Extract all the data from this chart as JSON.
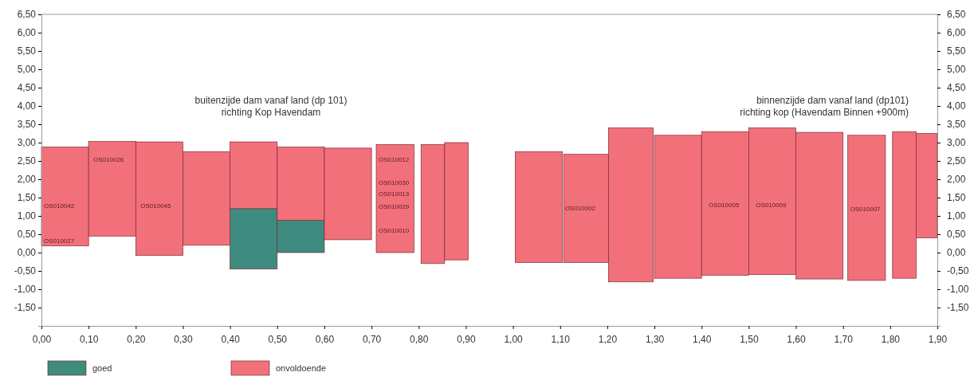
{
  "chart_data": {
    "type": "bar",
    "x": [
      0.05,
      0.15,
      0.25,
      0.35,
      0.45,
      0.55,
      0.65,
      0.75,
      0.83,
      0.88,
      0.95,
      1.055,
      1.155,
      1.25,
      1.35,
      1.45,
      1.55,
      1.65,
      1.75,
      1.83,
      1.88
    ],
    "series": [
      {
        "name": "goed",
        "color": "#3d8c7f",
        "base": [
          null,
          null,
          null,
          null,
          -0.45,
          0,
          null,
          null,
          null,
          null,
          null,
          null,
          null,
          null,
          null,
          null,
          null,
          null,
          null,
          null,
          null
        ],
        "values": [
          null,
          null,
          null,
          null,
          1.65,
          0.88,
          null,
          null,
          null,
          null,
          null,
          null,
          null,
          null,
          null,
          null,
          null,
          null,
          null,
          null,
          null
        ]
      },
      {
        "name": "onvoldoende",
        "color": "#f2707a",
        "base": [
          0.18,
          0.45,
          -0.08,
          0.2,
          1.2,
          0.88,
          0.35,
          0,
          -0.3,
          -0.2,
          null,
          -0.27,
          -0.27,
          -0.8,
          -0.7,
          -0.62,
          -0.6,
          -0.72,
          -0.76,
          -0.7,
          0.4
        ],
        "values": [
          2.7,
          2.58,
          3.1,
          2.55,
          1.82,
          2,
          2.5,
          2.95,
          3.25,
          3.2,
          null,
          3.02,
          2.95,
          4.2,
          3.9,
          3.92,
          4,
          4,
          3.96,
          4,
          2.85
        ]
      }
    ],
    "xlim": [
      0,
      1.9
    ],
    "xticks": [
      {
        "value": 0,
        "label": "0,00"
      },
      {
        "value": 0.1,
        "label": "0,10"
      },
      {
        "value": 0.2,
        "label": "0,20"
      },
      {
        "value": 0.3,
        "label": "0,30"
      },
      {
        "value": 0.4,
        "label": "0,40"
      },
      {
        "value": 0.5,
        "label": "0,50"
      },
      {
        "value": 0.6,
        "label": "0,60"
      },
      {
        "value": 0.7,
        "label": "0,70"
      },
      {
        "value": 0.8,
        "label": "0,80"
      },
      {
        "value": 0.9,
        "label": "0,90"
      },
      {
        "value": 1.0,
        "label": "1,00"
      },
      {
        "value": 1.1,
        "label": "1,10"
      },
      {
        "value": 1.2,
        "label": "1,20"
      },
      {
        "value": 1.3,
        "label": "1,30"
      },
      {
        "value": 1.4,
        "label": "1,40"
      },
      {
        "value": 1.5,
        "label": "1,50"
      },
      {
        "value": 1.6,
        "label": "1,60"
      },
      {
        "value": 1.7,
        "label": "1,70"
      },
      {
        "value": 1.8,
        "label": "1,80"
      },
      {
        "value": 1.9,
        "label": "1,90"
      }
    ],
    "ylim": [
      -2,
      6.5
    ],
    "yticks": [
      {
        "value": -1.5,
        "label": "-1,50"
      },
      {
        "value": -1,
        "label": "-1,00"
      },
      {
        "value": -0.5,
        "label": "-0,50"
      },
      {
        "value": 0,
        "label": "0,00"
      },
      {
        "value": 0.5,
        "label": "0,50"
      },
      {
        "value": 1,
        "label": "1,00"
      },
      {
        "value": 1.5,
        "label": "1,50"
      },
      {
        "value": 2,
        "label": "2,00"
      },
      {
        "value": 2.5,
        "label": "2,50"
      },
      {
        "value": 3,
        "label": "3,00"
      },
      {
        "value": 3.5,
        "label": "3,50"
      },
      {
        "value": 4,
        "label": "4,00"
      },
      {
        "value": 4.5,
        "label": "4,50"
      },
      {
        "value": 5,
        "label": "5,00"
      },
      {
        "value": 5.5,
        "label": "5,50"
      },
      {
        "value": 6,
        "label": "6,00"
      },
      {
        "value": 6.5,
        "label": "6,50"
      }
    ],
    "y2lim": [
      -2,
      6.5
    ],
    "y2ticks": [
      {
        "value": -1.5,
        "label": "-1,50"
      },
      {
        "value": -1,
        "label": "-1,00"
      },
      {
        "value": -0.5,
        "label": "-0,50"
      },
      {
        "value": 0,
        "label": "0,00"
      },
      {
        "value": 0.5,
        "label": "0,50"
      },
      {
        "value": 1,
        "label": "1,00"
      },
      {
        "value": 1.5,
        "label": "1,50"
      },
      {
        "value": 2,
        "label": "2,00"
      },
      {
        "value": 2.5,
        "label": "2,50"
      },
      {
        "value": 3,
        "label": "3,00"
      },
      {
        "value": 3.5,
        "label": "3,50"
      },
      {
        "value": 4,
        "label": "4,00"
      },
      {
        "value": 4.5,
        "label": "4,50"
      },
      {
        "value": 5,
        "label": "5,00"
      },
      {
        "value": 5.5,
        "label": "5,50"
      },
      {
        "value": 6,
        "label": "6,00"
      },
      {
        "value": 6.5,
        "label": "6,50"
      }
    ],
    "annotations": [
      "buitenzijde dam vanaf land (dp 101)\nrichting Kop Havendam",
      "binnenzijde dam vanaf land (dp101)\nrichting kop (Havendam Binnen +900m)",
      "OS010026",
      "OS010042",
      "OS010027",
      "OS010045",
      "OS010012",
      "OS010030",
      "OS010013",
      "OS010029",
      "OS010010",
      "OS010002",
      "OS010005",
      "OS010009",
      "OS010007"
    ],
    "legend": "bottom left",
    "grid": false
  }
}
